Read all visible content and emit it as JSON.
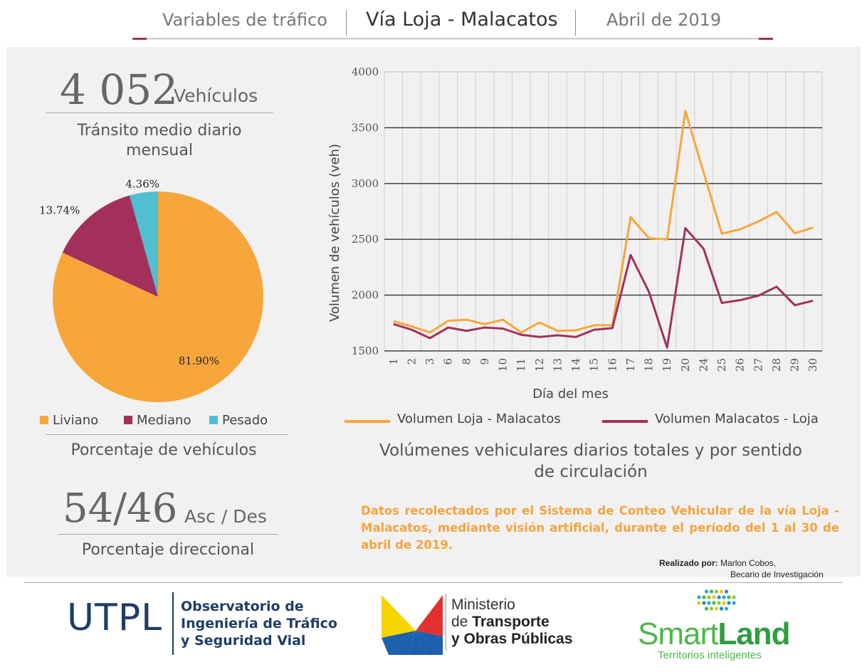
{
  "header": {
    "left": "Variables de tráfico",
    "center": "Vía Loja - Malacatos",
    "right": "Abril de 2019"
  },
  "tmdm": {
    "value": "4 052",
    "unit": "Vehículos",
    "caption_line1": "Tránsito medio diario",
    "caption_line2": "mensual"
  },
  "pie_caption": "Porcentaje de vehículos",
  "directional": {
    "value": "54/46",
    "unit": "Asc / Des",
    "caption": "Porcentaje direccional"
  },
  "line_caption": {
    "line1": "Volúmenes vehiculares diarios totales y por sentido",
    "line2": "de circulación"
  },
  "note": "Datos recolectados por el Sistema de Conteo Vehicular de la vía Loja - Malacatos, mediante visión artificial, durante el período del 1 al 30 de abril de 2019.",
  "credit": {
    "label": "Realizado por:",
    "name": "Marlon Cobos,",
    "role": "Becario de Investigación"
  },
  "footer": {
    "utpl": "UTPL",
    "obs_line1": "Observatorio de",
    "obs_line2": "Ingeniería de Tráfico",
    "obs_line3": "y Seguridad Vial",
    "mtop_line1": "Ministerio",
    "mtop_line2_a": "de ",
    "mtop_line2_b": "Transporte",
    "mtop_line3": "y Obras Públicas",
    "smart": "Smart",
    "land": "Land",
    "smartland_sub": "Territorios inteligentes"
  },
  "colors": {
    "liviano": "#f7a63c",
    "mediano": "#a3305b",
    "pesado": "#4fbfd1"
  },
  "chart_data": [
    {
      "type": "pie",
      "categories": [
        "Liviano",
        "Mediano",
        "Pesado"
      ],
      "values": [
        81.9,
        13.74,
        4.36
      ],
      "labels": [
        "81.90%",
        "13.74%",
        "4.36%"
      ],
      "legend": "bottom"
    },
    {
      "type": "line",
      "xlabel": "Día del mes",
      "ylabel": "Volumen de vehículos (veh)",
      "ylim": [
        1500,
        4000
      ],
      "yticks": [
        1500,
        2000,
        2500,
        3000,
        3500,
        4000
      ],
      "grid": true,
      "legend": "bottom",
      "categories": [
        "1",
        "2",
        "3",
        "6",
        "8",
        "9",
        "10",
        "11",
        "12",
        "13",
        "14",
        "15",
        "16",
        "17",
        "18",
        "19",
        "20",
        "24",
        "25",
        "26",
        "27",
        "28",
        "29",
        "30"
      ],
      "series": [
        {
          "name": "Volumen Loja - Malacatos",
          "color": "#f7a63c",
          "values": [
            1765,
            1720,
            1665,
            1770,
            1780,
            1740,
            1780,
            1665,
            1755,
            1680,
            1685,
            1730,
            1730,
            2700,
            2510,
            2500,
            3650,
            3100,
            2550,
            2590,
            2660,
            2745,
            2555,
            2605
          ]
        },
        {
          "name": "Volumen Malacatos - Loja",
          "color": "#a3305b",
          "values": [
            1740,
            1690,
            1615,
            1710,
            1680,
            1710,
            1700,
            1645,
            1625,
            1640,
            1625,
            1690,
            1705,
            2360,
            2030,
            1530,
            2600,
            2415,
            1930,
            1955,
            1995,
            2075,
            1910,
            1950
          ]
        }
      ]
    }
  ]
}
